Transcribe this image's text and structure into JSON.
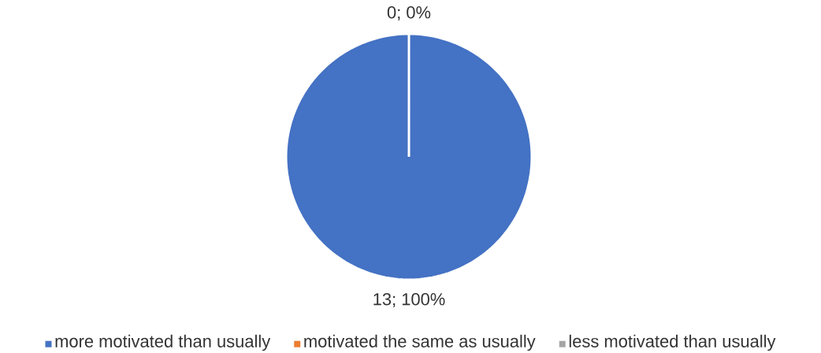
{
  "chart_data": {
    "type": "pie",
    "categories": [
      "more motivated than usually",
      "motivated the same as usually",
      "less motivated than usually"
    ],
    "values": [
      13,
      0,
      0
    ],
    "colors": [
      "#4472c4",
      "#ed7d31",
      "#a5a5a5"
    ],
    "value_labels": [
      "13; 100%",
      "0; 0%",
      null
    ],
    "legend": "bottom"
  }
}
